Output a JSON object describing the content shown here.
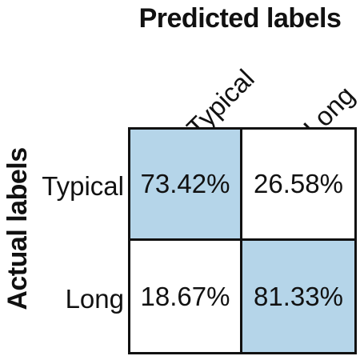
{
  "chart_data": {
    "type": "heatmap",
    "title": "Predicted labels",
    "xlabel": "Predicted labels",
    "ylabel": "Actual labels",
    "x_categories": [
      "Typical",
      "Long"
    ],
    "y_categories": [
      "Typical",
      "Long"
    ],
    "values": [
      [
        "73.42%",
        "26.58%"
      ],
      [
        "18.67%",
        "81.33%"
      ]
    ],
    "values_numeric": [
      [
        73.42,
        26.58
      ],
      [
        18.67,
        81.33
      ]
    ],
    "highlight_color": "#b5d5e9",
    "default_color": "#ffffff",
    "grid": true,
    "legend": "none"
  }
}
